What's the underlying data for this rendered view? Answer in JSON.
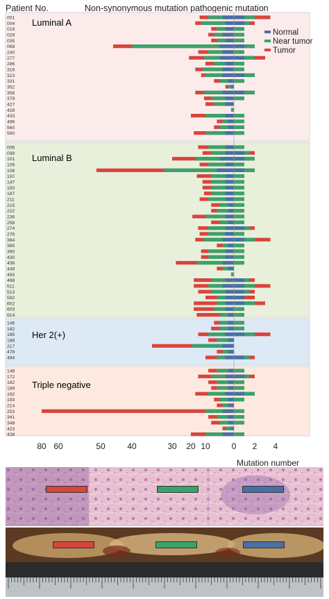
{
  "header": {
    "left_label": "Patient No.",
    "title": "Non-synonymous mutation pathogenic mutation"
  },
  "legend": [
    {
      "name": "Normal",
      "color": "#4a6fa5"
    },
    {
      "name": "Near tumor",
      "color": "#3aa36b"
    },
    {
      "name": "Tumor",
      "color": "#d9443b"
    }
  ],
  "colors": {
    "normal": "#4a6fa5",
    "near": "#3aa36b",
    "tumor": "#d9443b",
    "bg_luminal_a": "#fbeceb",
    "bg_luminal_b": "#e8f0dc",
    "bg_her2": "#dde9f4",
    "bg_triple": "#fde9df"
  },
  "xaxis": {
    "left_ticks": [
      "80",
      "60",
      "50",
      "40",
      "30",
      "20",
      "10",
      "0"
    ],
    "right_ticks": [
      "2",
      "4"
    ],
    "label": "Mutation number"
  },
  "photos": {
    "he": {
      "description_icon": "he-stain-image"
    },
    "gross": {
      "description_icon": "gross-specimen-image"
    },
    "ruler": {
      "description_icon": "ruler-image"
    }
  },
  "chart_data": {
    "type": "bar",
    "orientation": "horizontal-butterfly",
    "title": "Non-synonymous mutation pathogenic mutation",
    "xlabel": "Mutation number",
    "ylabel": "Patient No.",
    "left_panel": "Non-synonymous mutation",
    "right_panel": "pathogenic mutation",
    "series_names": [
      "Normal",
      "Near tumor",
      "Tumor"
    ],
    "groups": [
      {
        "name": "Luminal A",
        "patients": [
          {
            "id": "001",
            "non_syn": [
              4,
              9,
              14
            ],
            "patho": [
              1,
              2,
              3.5
            ]
          },
          {
            "id": "004",
            "non_syn": [
              3,
              13,
              17
            ],
            "patho": [
              1,
              1.5,
              2
            ]
          },
          {
            "id": "019",
            "non_syn": [
              3,
              6,
              8
            ],
            "patho": [
              0,
              1,
              1
            ]
          },
          {
            "id": "029",
            "non_syn": [
              4,
              7,
              9
            ],
            "patho": [
              0,
              1,
              1
            ]
          },
          {
            "id": "035",
            "non_syn": [
              3,
              6,
              8
            ],
            "patho": [
              0,
              1,
              1
            ]
          },
          {
            "id": "068",
            "non_syn": [
              5,
              40,
              46
            ],
            "patho": [
              1,
              2,
              2
            ]
          },
          {
            "id": "240",
            "non_syn": [
              4,
              9,
              15
            ],
            "patho": [
              0,
              1,
              1
            ]
          },
          {
            "id": "277",
            "non_syn": [
              5,
              11,
              21
            ],
            "patho": [
              1,
              2,
              3
            ]
          },
          {
            "id": "286",
            "non_syn": [
              3,
              7,
              10
            ],
            "patho": [
              0,
              1,
              1
            ]
          },
          {
            "id": "316",
            "non_syn": [
              4,
              12,
              17
            ],
            "patho": [
              0,
              1,
              1
            ]
          },
          {
            "id": "323",
            "non_syn": [
              4,
              10,
              13
            ],
            "patho": [
              1,
              2,
              2
            ]
          },
          {
            "id": "331",
            "non_syn": [
              2,
              5,
              7
            ],
            "patho": [
              0,
              1,
              1
            ]
          },
          {
            "id": "352",
            "non_syn": [
              1,
              2,
              3
            ],
            "patho": [
              0,
              0,
              0
            ]
          },
          {
            "id": "358",
            "non_syn": [
              4,
              11,
              17
            ],
            "patho": [
              1,
              2,
              2
            ]
          },
          {
            "id": "379",
            "non_syn": [
              3,
              8,
              11
            ],
            "patho": [
              0,
              1,
              1
            ]
          },
          {
            "id": "427",
            "non_syn": [
              3,
              7,
              10
            ],
            "patho": [
              0,
              0,
              0
            ]
          },
          {
            "id": "428",
            "non_syn": [
              0,
              1,
              1
            ],
            "patho": [
              0,
              0,
              0
            ]
          },
          {
            "id": "433",
            "non_syn": [
              3,
              10,
              20
            ],
            "patho": [
              0,
              1,
              1
            ]
          },
          {
            "id": "496",
            "non_syn": [
              2,
              4,
              6
            ],
            "patho": [
              0,
              1,
              1
            ]
          },
          {
            "id": "560",
            "non_syn": [
              2,
              5,
              7
            ],
            "patho": [
              0,
              1,
              1
            ]
          },
          {
            "id": "580",
            "non_syn": [
              3,
              10,
              18
            ],
            "patho": [
              0,
              1,
              1
            ]
          }
        ]
      },
      {
        "name": "Luminal B",
        "patients": [
          {
            "id": "006",
            "non_syn": [
              3,
              9,
              15
            ],
            "patho": [
              0,
              1,
              1
            ]
          },
          {
            "id": "039",
            "non_syn": [
              3,
              8,
              12
            ],
            "patho": [
              1,
              1.5,
              2
            ]
          },
          {
            "id": "101",
            "non_syn": [
              5,
              17,
              30
            ],
            "patho": [
              1,
              2,
              2
            ]
          },
          {
            "id": "105",
            "non_syn": [
              3,
              9,
              14
            ],
            "patho": [
              0,
              1,
              1
            ]
          },
          {
            "id": "108",
            "non_syn": [
              6,
              32,
              51
            ],
            "patho": [
              1,
              2,
              2
            ]
          },
          {
            "id": "110",
            "non_syn": [
              3,
              8,
              16
            ],
            "patho": [
              0,
              1,
              1
            ]
          },
          {
            "id": "147",
            "non_syn": [
              3,
              8,
              12
            ],
            "patho": [
              0,
              1,
              1
            ]
          },
          {
            "id": "150",
            "non_syn": [
              3,
              8,
              12
            ],
            "patho": [
              0,
              1,
              1
            ]
          },
          {
            "id": "187",
            "non_syn": [
              3,
              8,
              11
            ],
            "patho": [
              0,
              1,
              1
            ]
          },
          {
            "id": "211",
            "non_syn": [
              3,
              9,
              14
            ],
            "patho": [
              0,
              1,
              1
            ]
          },
          {
            "id": "215",
            "non_syn": [
              2,
              5,
              8
            ],
            "patho": [
              0,
              1,
              1
            ]
          },
          {
            "id": "222",
            "non_syn": [
              2,
              6,
              8
            ],
            "patho": [
              0,
              1,
              1
            ]
          },
          {
            "id": "236",
            "non_syn": [
              3,
              10,
              19
            ],
            "patho": [
              0,
              1,
              1
            ]
          },
          {
            "id": "258",
            "non_syn": [
              2,
              5,
              8
            ],
            "patho": [
              0,
              1,
              1
            ]
          },
          {
            "id": "274",
            "non_syn": [
              3,
              9,
              15
            ],
            "patho": [
              1,
              1.5,
              2
            ]
          },
          {
            "id": "276",
            "non_syn": [
              3,
              9,
              14
            ],
            "patho": [
              0,
              1,
              1
            ]
          },
          {
            "id": "384",
            "non_syn": [
              4,
              11,
              17
            ],
            "patho": [
              1,
              2,
              3.5
            ]
          },
          {
            "id": "385",
            "non_syn": [
              2,
              4,
              6
            ],
            "patho": [
              0,
              1,
              1
            ]
          },
          {
            "id": "390",
            "non_syn": [
              3,
              9,
              13
            ],
            "patho": [
              0,
              1,
              1
            ]
          },
          {
            "id": "430",
            "non_syn": [
              3,
              9,
              13
            ],
            "patho": [
              0,
              1,
              1
            ]
          },
          {
            "id": "436",
            "non_syn": [
              4,
              16,
              28
            ],
            "patho": [
              0,
              1,
              1
            ]
          },
          {
            "id": "449",
            "non_syn": [
              2,
              4,
              6
            ],
            "patho": [
              0,
              0,
              0
            ]
          },
          {
            "id": "450",
            "non_syn": [
              0,
              1,
              1
            ],
            "patho": [
              0,
              0,
              0
            ]
          },
          {
            "id": "498",
            "non_syn": [
              3,
              8,
              18
            ],
            "patho": [
              1,
              1.5,
              2
            ]
          },
          {
            "id": "511",
            "non_syn": [
              4,
              9,
              18
            ],
            "patho": [
              1,
              2,
              3.5
            ]
          },
          {
            "id": "513",
            "non_syn": [
              3,
              8,
              15
            ],
            "patho": [
              1,
              1.5,
              2
            ]
          },
          {
            "id": "592",
            "non_syn": [
              3,
              6,
              10
            ],
            "patho": [
              1,
              1,
              2
            ]
          },
          {
            "id": "602",
            "non_syn": [
              3,
              6,
              18
            ],
            "patho": [
              1,
              2,
              3
            ]
          },
          {
            "id": "603",
            "non_syn": [
              3,
              7,
              18
            ],
            "patho": [
              0,
              1,
              1
            ]
          },
          {
            "id": "614",
            "non_syn": [
              2,
              5,
              16
            ],
            "patho": [
              0,
              1,
              1
            ]
          }
        ]
      },
      {
        "name": "Her 2(+)",
        "patients": [
          {
            "id": "146",
            "non_syn": [
              2,
              5,
              7
            ],
            "patho": [
              0,
              1,
              1
            ]
          },
          {
            "id": "182",
            "non_syn": [
              2,
              5,
              8
            ],
            "patho": [
              0,
              1,
              1
            ]
          },
          {
            "id": "185",
            "non_syn": [
              3,
              9,
              15
            ],
            "patho": [
              1,
              2,
              3.5
            ]
          },
          {
            "id": "188",
            "non_syn": [
              2,
              6,
              9
            ],
            "patho": [
              0,
              0,
              0
            ]
          },
          {
            "id": "217",
            "non_syn": [
              4,
              19,
              35
            ],
            "patho": [
              0,
              0,
              0
            ]
          },
          {
            "id": "478",
            "non_syn": [
              2,
              4,
              6
            ],
            "patho": [
              0,
              0,
              0
            ]
          },
          {
            "id": "494",
            "non_syn": [
              3,
              6,
              10
            ],
            "patho": [
              1,
              1.5,
              2
            ]
          }
        ]
      },
      {
        "name": "Triple negative",
        "patients": [
          {
            "id": "148",
            "non_syn": [
              2,
              6,
              9
            ],
            "patho": [
              0,
              1,
              1
            ]
          },
          {
            "id": "172",
            "non_syn": [
              3,
              8,
              15
            ],
            "patho": [
              1,
              1.5,
              2
            ]
          },
          {
            "id": "182",
            "non_syn": [
              2,
              6,
              9
            ],
            "patho": [
              0,
              1,
              1
            ]
          },
          {
            "id": "189",
            "non_syn": [
              2,
              6,
              8
            ],
            "patho": [
              0,
              1,
              1
            ]
          },
          {
            "id": "192",
            "non_syn": [
              3,
              9,
              17
            ],
            "patho": [
              1,
              2,
              2
            ]
          },
          {
            "id": "193",
            "non_syn": [
              2,
              5,
              7
            ],
            "patho": [
              0,
              1,
              1
            ]
          },
          {
            "id": "214",
            "non_syn": [
              2,
              4,
              6
            ],
            "patho": [
              0,
              0,
              0
            ]
          },
          {
            "id": "253",
            "non_syn": [
              4,
              10,
              94
            ],
            "patho": [
              0,
              1,
              1
            ]
          },
          {
            "id": "341",
            "non_syn": [
              2,
              6,
              9
            ],
            "patho": [
              0,
              1,
              1
            ]
          },
          {
            "id": "348",
            "non_syn": [
              2,
              5,
              8
            ],
            "patho": [
              0,
              1,
              1
            ]
          },
          {
            "id": "423",
            "non_syn": [
              1,
              3,
              4
            ],
            "patho": [
              0,
              0,
              0
            ]
          },
          {
            "id": "438",
            "non_syn": [
              4,
              10,
              20
            ],
            "patho": [
              0,
              1,
              1
            ]
          }
        ]
      }
    ]
  }
}
